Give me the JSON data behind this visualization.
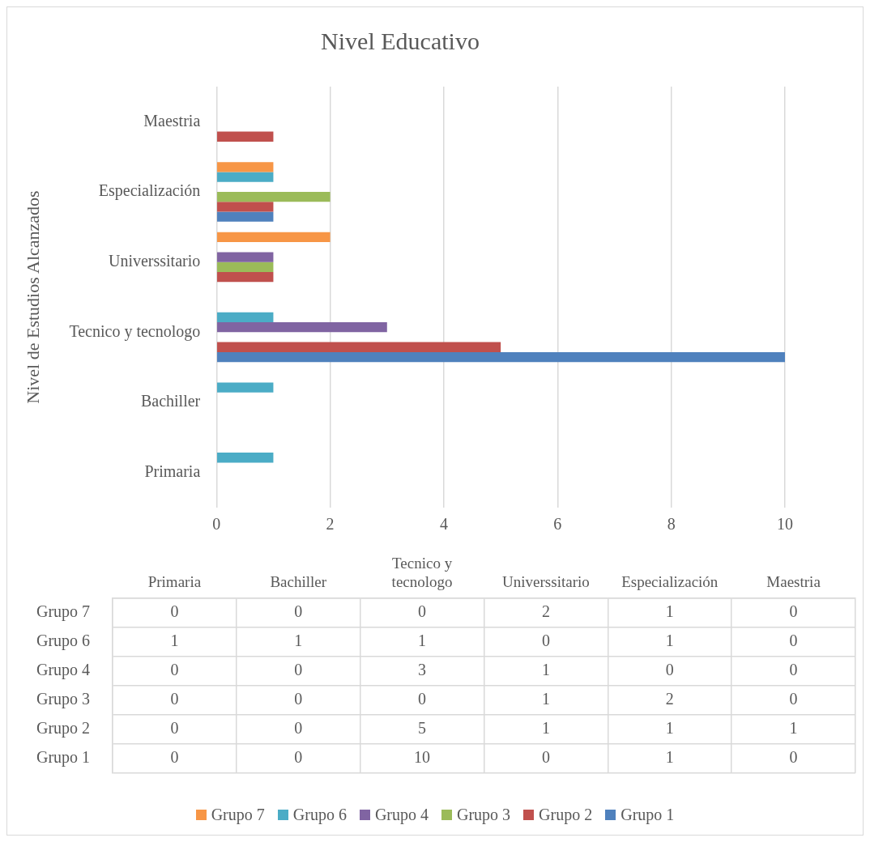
{
  "chart_data": [
    {
      "type": "bar",
      "orientation": "horizontal",
      "title": "Nivel Educativo",
      "ylabel": "Nivel de Estudios Alcanzados",
      "categories": [
        "Maestria",
        "Especialización",
        "Universsitario",
        "Tecnico y tecnologo",
        "Bachiller",
        "Primaria"
      ],
      "series": [
        {
          "name": "Grupo 7",
          "color": "#f79646",
          "values": [
            0,
            1,
            2,
            0,
            0,
            0
          ]
        },
        {
          "name": "Grupo 6",
          "color": "#4bacc6",
          "values": [
            0,
            1,
            0,
            1,
            1,
            1
          ]
        },
        {
          "name": "Grupo 4",
          "color": "#8064a2",
          "values": [
            0,
            0,
            1,
            3,
            0,
            0
          ]
        },
        {
          "name": "Grupo 3",
          "color": "#9bbb59",
          "values": [
            0,
            2,
            1,
            0,
            0,
            0
          ]
        },
        {
          "name": "Grupo 2",
          "color": "#c0504d",
          "values": [
            1,
            1,
            1,
            5,
            0,
            0
          ]
        },
        {
          "name": "Grupo 1",
          "color": "#4f81bd",
          "values": [
            0,
            1,
            0,
            10,
            0,
            0
          ]
        }
      ],
      "xlim": [
        0,
        10
      ],
      "xticks": [
        0,
        2,
        4,
        6,
        8,
        10
      ],
      "grid": "x",
      "legend": "bottom"
    },
    {
      "type": "heatmap",
      "categories": [
        "Primaria",
        "Bachiller",
        "Tecnico y tecnologo",
        "Universsitario",
        "Especialización",
        "Maestria"
      ],
      "y_categories": [
        "Grupo 7",
        "Grupo 6",
        "Grupo 4",
        "Grupo 3",
        "Grupo 2",
        "Grupo 1"
      ],
      "cells": [
        [
          0,
          0,
          0,
          2,
          1,
          0
        ],
        [
          1,
          1,
          1,
          0,
          1,
          0
        ],
        [
          0,
          0,
          3,
          1,
          0,
          0
        ],
        [
          0,
          0,
          0,
          1,
          2,
          0
        ],
        [
          0,
          0,
          5,
          1,
          1,
          1
        ],
        [
          0,
          0,
          10,
          0,
          1,
          0
        ]
      ],
      "data_labels": true
    }
  ]
}
